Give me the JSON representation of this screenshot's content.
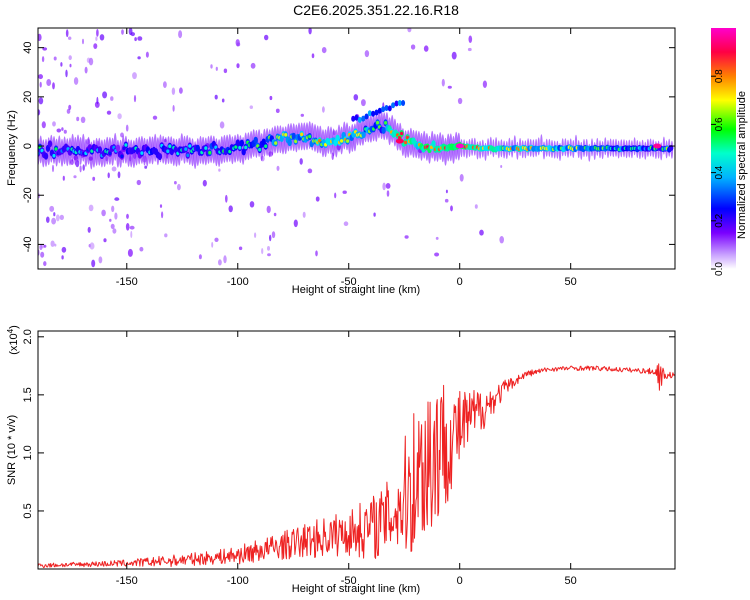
{
  "figure_title": "C2E6.2025.351.22.16.R18",
  "chart_data": [
    {
      "type": "heatmap",
      "title": "C2E6.2025.351.22.16.R18",
      "xlabel": "Height of straight line (km)",
      "ylabel": "Frequency (Hz)",
      "xlim": [
        -190,
        97
      ],
      "ylim": [
        -50,
        48
      ],
      "x_ticks": [
        -150,
        -100,
        -50,
        0,
        50
      ],
      "y_ticks": [
        40,
        20,
        0,
        -20,
        -40
      ],
      "colorbar": {
        "label": "Normalized spectral amplitude",
        "range": [
          0,
          1
        ],
        "ticks": [
          0.0,
          0.2,
          0.4,
          0.6,
          0.8
        ],
        "colormap": [
          "#ffffff",
          "#7a00ff",
          "#0000ff",
          "#00e5ff",
          "#00ff44",
          "#ffff00",
          "#ff7a00",
          "#ff0044",
          "#ff00cc"
        ]
      },
      "ridge": {
        "description": "dominant frequency ridge",
        "x": [
          -190,
          -150,
          -120,
          -100,
          -90,
          -80,
          -70,
          -60,
          -50,
          -45,
          -40,
          -35,
          -30,
          -25,
          -20,
          -15,
          -10,
          0,
          10,
          50,
          96
        ],
        "y": [
          -2,
          -2,
          -2,
          -1,
          1,
          3,
          4,
          1,
          3,
          5,
          7,
          8,
          6,
          2,
          1,
          0,
          -1,
          0,
          -1,
          -1,
          -1
        ],
        "amplitude": [
          0.38,
          0.35,
          0.4,
          0.45,
          0.5,
          0.55,
          0.6,
          0.65,
          0.62,
          0.6,
          0.55,
          0.5,
          0.7,
          0.85,
          0.7,
          0.8,
          0.75,
          0.95,
          0.75,
          0.55,
          0.45
        ],
        "peak_points": [
          {
            "x": -27,
            "y": 2,
            "amplitude": 0.9
          },
          {
            "x": 0,
            "y": 0,
            "amplitude": 1.0
          },
          {
            "x": 89,
            "y": 0,
            "amplitude": 0.95
          }
        ]
      }
    },
    {
      "type": "line",
      "xlabel": "Height of straight line (km)",
      "ylabel": "SNR (10 * v/v)",
      "y_scale_label": "(x10",
      "y_scale_exponent": "4",
      "y_scale_suffix": ")",
      "xlim": [
        -190,
        97
      ],
      "ylim": [
        0,
        2.05
      ],
      "x_ticks": [
        -150,
        -100,
        -50,
        0,
        50
      ],
      "y_ticks": [
        0.5,
        1.0,
        1.5,
        2.0
      ],
      "y_tick_labels": [
        "0.5",
        "1.0",
        "1.5",
        "2.0"
      ],
      "series": [
        {
          "name": "SNR",
          "color": "#ee2222",
          "x": [
            -190,
            -170,
            -150,
            -130,
            -110,
            -100,
            -90,
            -80,
            -70,
            -60,
            -50,
            -40,
            -35,
            -30,
            -25,
            -22,
            -18,
            -15,
            -12,
            -10,
            -5,
            0,
            5,
            10,
            15,
            20,
            25,
            30,
            40,
            50,
            60,
            70,
            80,
            88,
            90,
            92,
            97
          ],
          "mean": [
            0.03,
            0.04,
            0.05,
            0.07,
            0.1,
            0.12,
            0.16,
            0.2,
            0.24,
            0.28,
            0.31,
            0.36,
            0.4,
            0.48,
            0.6,
            0.75,
            0.85,
            0.95,
            1.0,
            1.05,
            1.1,
            1.2,
            1.3,
            1.38,
            1.45,
            1.55,
            1.62,
            1.68,
            1.72,
            1.73,
            1.73,
            1.72,
            1.71,
            1.7,
            1.68,
            1.67,
            1.67
          ],
          "noise": [
            0.02,
            0.02,
            0.03,
            0.05,
            0.06,
            0.08,
            0.1,
            0.12,
            0.15,
            0.18,
            0.2,
            0.28,
            0.3,
            0.35,
            0.5,
            0.7,
            0.6,
            0.8,
            0.9,
            0.7,
            0.5,
            0.35,
            0.25,
            0.2,
            0.12,
            0.08,
            0.04,
            0.03,
            0.02,
            0.02,
            0.02,
            0.02,
            0.02,
            0.03,
            0.15,
            0.04,
            0.02
          ]
        }
      ]
    }
  ]
}
